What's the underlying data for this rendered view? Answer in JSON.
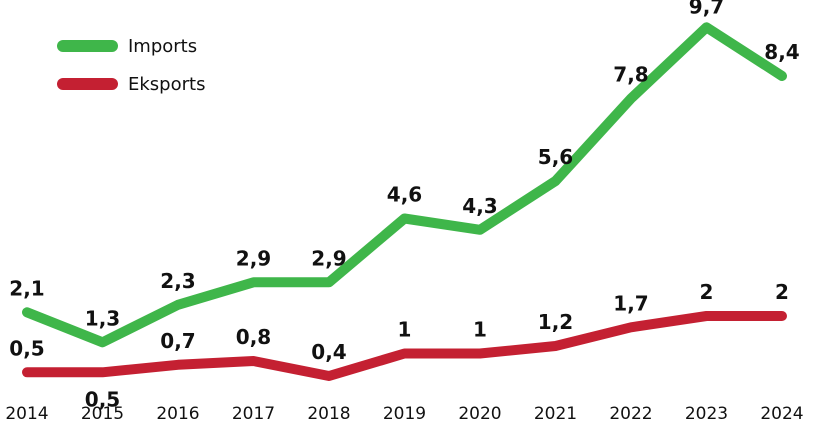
{
  "chart_data": {
    "type": "line",
    "categories": [
      "2014",
      "2015",
      "2016",
      "2017",
      "2018",
      "2019",
      "2020",
      "2021",
      "2022",
      "2023",
      "2024"
    ],
    "series": [
      {
        "name": "Imports",
        "color": "#3fb64a",
        "values": [
          2.1,
          1.3,
          2.3,
          2.9,
          2.9,
          4.6,
          4.3,
          5.6,
          7.8,
          9.7,
          8.4
        ],
        "labels": [
          "2,1",
          "1,3",
          "2,3",
          "2,9",
          "2,9",
          "4,6",
          "4,3",
          "5,6",
          "7,8",
          "9,7",
          "8,4"
        ]
      },
      {
        "name": "Eksports",
        "color": "#c42032",
        "values": [
          0.5,
          0.5,
          0.7,
          0.8,
          0.4,
          1,
          1,
          1.2,
          1.7,
          2,
          2
        ],
        "labels": [
          "0,5",
          "0,5",
          "0,7",
          "0,8",
          "0,4",
          "1",
          "1",
          "1,2",
          "1,7",
          "2",
          "2"
        ]
      }
    ],
    "title": "",
    "xlabel": "",
    "ylabel": "",
    "grid": false,
    "legend": "top-left"
  }
}
